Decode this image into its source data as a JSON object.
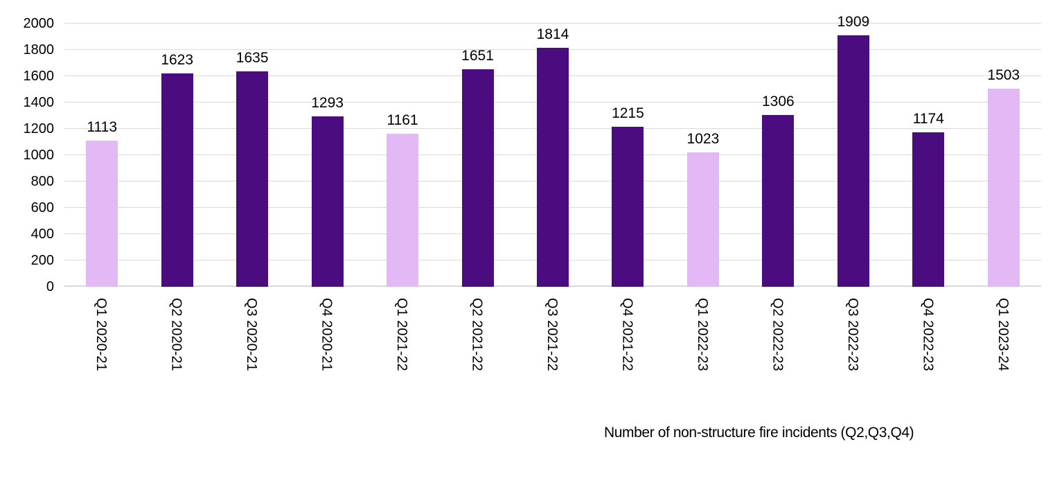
{
  "chart_data": {
    "type": "bar",
    "title": "Number of non-structure fire incidents (Q2,Q3,Q4)",
    "title_position": "bottom",
    "categories": [
      "Q1 2020-21",
      "Q2 2020-21",
      "Q3 2020-21",
      "Q4 2020-21",
      "Q1 2021-22",
      "Q2 2021-22",
      "Q3 2021-22",
      "Q4 2021-22",
      "Q1 2022-23",
      "Q2 2022-23",
      "Q3 2022-23",
      "Q4 2022-23",
      "Q1 2023-24"
    ],
    "values": [
      1113,
      1623,
      1635,
      1293,
      1161,
      1651,
      1814,
      1215,
      1023,
      1306,
      1909,
      1174,
      1503
    ],
    "bar_color_keys": [
      "light",
      "dark",
      "dark",
      "dark",
      "light",
      "dark",
      "dark",
      "dark",
      "light",
      "dark",
      "dark",
      "dark",
      "light"
    ],
    "colors": {
      "dark": "#4B0C80",
      "light": "#E2B9F5",
      "gridline": "#D9D9D9",
      "text": "#000000"
    },
    "xlabel": "",
    "ylabel": "",
    "ylim": [
      0,
      2000
    ],
    "yticks": [
      0,
      200,
      400,
      600,
      800,
      1000,
      1200,
      1400,
      1600,
      1800,
      2000
    ],
    "grid": true,
    "legend": "none",
    "x_tick_rotation_deg": 90,
    "data_labels_shown": true
  }
}
